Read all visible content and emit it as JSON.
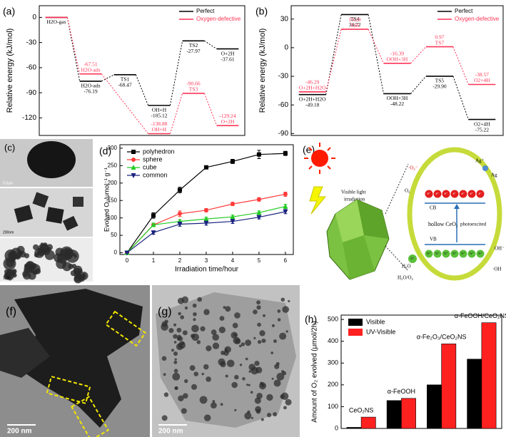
{
  "chart_data": [
    {
      "type": "energy",
      "label": "(a)",
      "y_label": "Relative energy (kJ/mol)",
      "ylim": [
        -141,
        14
      ],
      "yticks": [
        0,
        -30,
        -60,
        -90,
        -120
      ],
      "legend": "upper right",
      "series": [
        {
          "name": "Perfect",
          "color": "#000000",
          "values": [
            0,
            -76.19,
            -68.47,
            -105.12,
            -27.97,
            -37.61
          ],
          "value_labels": [
            null,
            "-76.19",
            "-68.47",
            "-105.12",
            "-27.97",
            "-37.61"
          ],
          "states": [
            "H2O-gas",
            "H2O-ads",
            "TS1",
            "OH+H",
            "TS2",
            "O+2H"
          ]
        },
        {
          "name": "Oxygen-defective",
          "color": "#ff3355",
          "values": [
            0,
            -67.51,
            null,
            -138.88,
            -90.66,
            -129.24
          ],
          "value_labels": [
            null,
            "-67.51",
            null,
            "-138.88",
            "-90.66",
            "-129.24"
          ],
          "states": [
            null,
            "H2O-ads",
            null,
            "OH+H",
            "TS3",
            "O+2H"
          ]
        }
      ]
    },
    {
      "type": "energy",
      "label": "(b)",
      "y_label": "Relative energy (kJ/mol)",
      "ylim": [
        -92,
        44
      ],
      "yticks": [
        30,
        0,
        -30,
        -60,
        -90
      ],
      "legend": "upper right",
      "series": [
        {
          "name": "Perfect",
          "color": "#000000",
          "values": [
            -49.18,
            34.72,
            -48.22,
            -29.9,
            -75.22
          ],
          "value_labels": [
            "-49.18",
            "34.72",
            "-48.22",
            "-29.90",
            "-75.22"
          ],
          "states": [
            "O+2H+H2O",
            "TS4",
            "OOH+3H",
            "TS5",
            "O2+4H"
          ]
        },
        {
          "name": "Oxygen-defective",
          "color": "#ff3355",
          "values": [
            -46.29,
            19.29,
            -16.39,
            0.97,
            -38.57
          ],
          "value_labels": [
            "-46.29",
            "19.29",
            "-16.39",
            "0.97",
            "-38.57"
          ],
          "states": [
            "O+2H+H2O",
            "TS6",
            "OOH+3H",
            "TS7",
            "O2+4H"
          ]
        }
      ]
    },
    {
      "type": "line",
      "label": "(d)",
      "x_label": "Irradiation time/hour",
      "y_label": "Evolved O₂/μmol⁻¹ g⁻¹",
      "x": [
        0,
        1,
        2,
        3,
        4,
        5,
        6
      ],
      "xlim": [
        -0.27,
        6.3
      ],
      "ylim": [
        -5,
        310
      ],
      "xticks": [
        0,
        1,
        2,
        3,
        4,
        5,
        6
      ],
      "yticks": [
        0,
        50,
        100,
        150,
        200,
        250,
        300
      ],
      "legend": "upper left",
      "series": [
        {
          "name": "polyhedron",
          "color": "#000000",
          "marker": "square",
          "values": [
            0,
            107,
            180,
            245,
            262,
            282,
            285
          ],
          "errors": [
            0,
            8,
            8,
            4,
            6,
            12,
            6
          ]
        },
        {
          "name": "sphere",
          "color": "#ff3b3b",
          "marker": "circle",
          "values": [
            0,
            80,
            112,
            122,
            140,
            153,
            168
          ],
          "errors": [
            0,
            5,
            8,
            5,
            5,
            5,
            6
          ]
        },
        {
          "name": "cube",
          "color": "#22cc22",
          "marker": "triangle-up",
          "values": [
            0,
            80,
            90,
            97,
            103,
            115,
            133
          ],
          "errors": [
            0,
            5,
            5,
            5,
            5,
            5,
            6
          ]
        },
        {
          "name": "common",
          "color": "#1a237e",
          "marker": "triangle-down",
          "values": [
            0,
            58,
            82,
            85,
            90,
            102,
            118
          ],
          "errors": [
            0,
            5,
            6,
            6,
            6,
            5,
            6
          ]
        }
      ]
    },
    {
      "type": "bar",
      "label": "(h)",
      "y_label": "Amount of O₂ evolved (μmol/2h)",
      "categories": [
        "CeO₂NS",
        "α-FeOOH",
        "α-Fe₂O₃/CeO₂NS",
        "α-FeOOH/CeO₂NS"
      ],
      "ylim": [
        0,
        520
      ],
      "yticks": [
        0,
        100,
        200,
        300,
        400,
        500
      ],
      "legend": "upper left",
      "series": [
        {
          "name": "Visible",
          "color": "#000000",
          "values": [
            5,
            128,
            200,
            318
          ]
        },
        {
          "name": "UV-Visible",
          "color": "#ff2020",
          "values": [
            52,
            138,
            388,
            485
          ]
        }
      ]
    }
  ],
  "images": [
    {
      "label": "(c)",
      "scale_bars": [
        "0.5μm",
        "200nm",
        "100nm"
      ]
    },
    {
      "label": "(f)",
      "scale_bar": "200 nm"
    },
    {
      "label": "(g)",
      "scale_bar": "200 nm"
    }
  ],
  "schematic": {
    "label": "(e)",
    "light": [
      "Visible light",
      "irradiation"
    ],
    "band_edges": [
      "CB",
      "VB"
    ],
    "material": "hollow CeO₂",
    "process": "photoexcited",
    "electron": "e⁻",
    "hole": "h⁺",
    "species": {
      "superoxide": "·O₂⁻",
      "o2": "O₂",
      "ag_ion": "Ag⁺",
      "ag": "Ag",
      "hydroxide": "OH⁻",
      "hydroxyl": "·OH",
      "water": "H₂O",
      "water_o2": "H₂O/O₂"
    }
  }
}
